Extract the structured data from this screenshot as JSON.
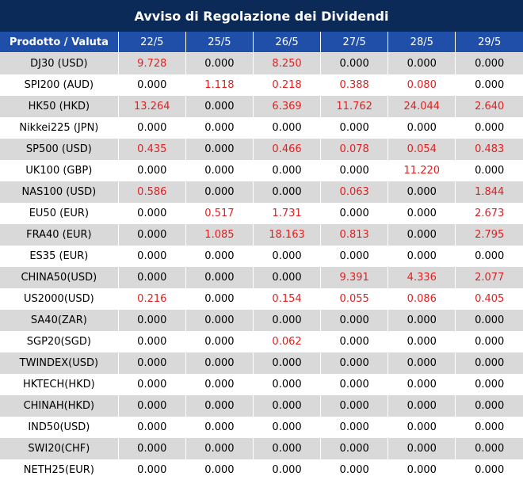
{
  "title": "Avviso di Regolazione dei Dividendi",
  "header": [
    "Prodotto / Valuta",
    "22/5",
    "25/5",
    "26/5",
    "27/5",
    "28/5",
    "29/5"
  ],
  "colors": {
    "title_bg": "#0c2a58",
    "header_bg": "#1f4fa8",
    "band": "#d9d9d9",
    "nonzero": "#e02020"
  },
  "rows": [
    {
      "product": "DJ30 (USD)",
      "values": [
        "9.728",
        "0.000",
        "8.250",
        "0.000",
        "0.000",
        "0.000"
      ]
    },
    {
      "product": "SPI200 (AUD)",
      "values": [
        "0.000",
        "1.118",
        "0.218",
        "0.388",
        "0.080",
        "0.000"
      ]
    },
    {
      "product": "HK50 (HKD)",
      "values": [
        "13.264",
        "0.000",
        "6.369",
        "11.762",
        "24.044",
        "2.640"
      ]
    },
    {
      "product": "Nikkei225 (JPN)",
      "values": [
        "0.000",
        "0.000",
        "0.000",
        "0.000",
        "0.000",
        "0.000"
      ]
    },
    {
      "product": "SP500 (USD)",
      "values": [
        "0.435",
        "0.000",
        "0.466",
        "0.078",
        "0.054",
        "0.483"
      ]
    },
    {
      "product": "UK100 (GBP)",
      "values": [
        "0.000",
        "0.000",
        "0.000",
        "0.000",
        "11.220",
        "0.000"
      ]
    },
    {
      "product": "NAS100 (USD)",
      "values": [
        "0.586",
        "0.000",
        "0.000",
        "0.063",
        "0.000",
        "1.844"
      ]
    },
    {
      "product": "EU50 (EUR)",
      "values": [
        "0.000",
        "0.517",
        "1.731",
        "0.000",
        "0.000",
        "2.673"
      ]
    },
    {
      "product": "FRA40 (EUR)",
      "values": [
        "0.000",
        "1.085",
        "18.163",
        "0.813",
        "0.000",
        "2.795"
      ]
    },
    {
      "product": "ES35 (EUR)",
      "values": [
        "0.000",
        "0.000",
        "0.000",
        "0.000",
        "0.000",
        "0.000"
      ]
    },
    {
      "product": "CHINA50(USD)",
      "values": [
        "0.000",
        "0.000",
        "0.000",
        "9.391",
        "4.336",
        "2.077"
      ]
    },
    {
      "product": "US2000(USD)",
      "values": [
        "0.216",
        "0.000",
        "0.154",
        "0.055",
        "0.086",
        "0.405"
      ]
    },
    {
      "product": "SA40(ZAR)",
      "values": [
        "0.000",
        "0.000",
        "0.000",
        "0.000",
        "0.000",
        "0.000"
      ]
    },
    {
      "product": "SGP20(SGD)",
      "values": [
        "0.000",
        "0.000",
        "0.062",
        "0.000",
        "0.000",
        "0.000"
      ]
    },
    {
      "product": "TWINDEX(USD)",
      "values": [
        "0.000",
        "0.000",
        "0.000",
        "0.000",
        "0.000",
        "0.000"
      ]
    },
    {
      "product": "HKTECH(HKD)",
      "values": [
        "0.000",
        "0.000",
        "0.000",
        "0.000",
        "0.000",
        "0.000"
      ]
    },
    {
      "product": "CHINAH(HKD)",
      "values": [
        "0.000",
        "0.000",
        "0.000",
        "0.000",
        "0.000",
        "0.000"
      ]
    },
    {
      "product": "IND50(USD)",
      "values": [
        "0.000",
        "0.000",
        "0.000",
        "0.000",
        "0.000",
        "0.000"
      ]
    },
    {
      "product": "SWI20(CHF)",
      "values": [
        "0.000",
        "0.000",
        "0.000",
        "0.000",
        "0.000",
        "0.000"
      ]
    },
    {
      "product": "NETH25(EUR)",
      "values": [
        "0.000",
        "0.000",
        "0.000",
        "0.000",
        "0.000",
        "0.000"
      ]
    }
  ]
}
